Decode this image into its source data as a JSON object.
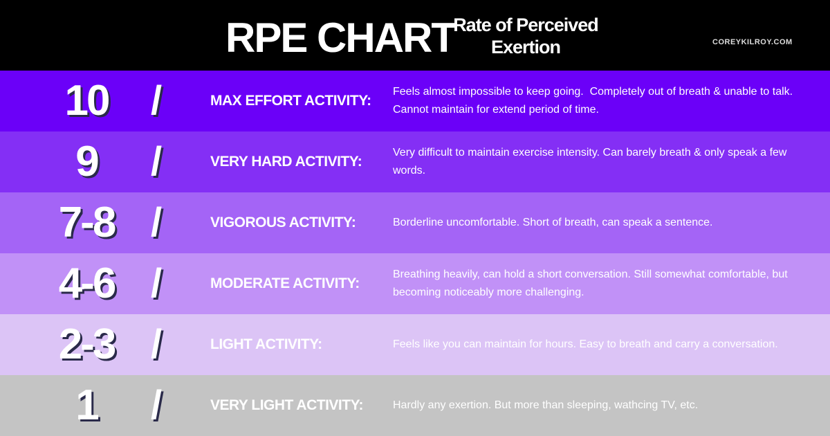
{
  "header": {
    "title": "RPE CHART",
    "subtitle": "Rate of Perceived Exertion",
    "site": "COREYKILROY.COM"
  },
  "separator": "/",
  "rows": [
    {
      "level": "10",
      "label": "MAX EFFORT ACTIVITY:",
      "description": "Feels almost impossible to keep going.  Completely out of breath & unable to talk. Cannot maintain for extend period of time.",
      "color": "#6b00f8"
    },
    {
      "level": "9",
      "label": "VERY HARD ACTIVITY:",
      "description": "Very difficult to maintain exercise intensity. Can barely breath & only speak a few words.",
      "color": "#842ff5"
    },
    {
      "level": "7-8",
      "label": "VIGOROUS ACTIVITY:",
      "description": "Borderline uncomfortable. Short of breath, can speak a sentence.",
      "color": "#a464f6"
    },
    {
      "level": "4-6",
      "label": "MODERATE ACTIVITY:",
      "description": "Breathing heavily, can hold a short conversation. Still somewhat comfortable, but becoming noticeably more challenging.",
      "color": "#c191f7"
    },
    {
      "level": "2-3",
      "label": "LIGHT ACTIVITY:",
      "description": "Feels like you can maintain for hours. Easy to breath and carry a conversation.",
      "color": "#dcc4f6"
    },
    {
      "level": "1",
      "label": "VERY LIGHT ACTIVITY:",
      "description": "Hardly any exertion. But more than sleeping, wathcing TV, etc.",
      "color": "#c4c4c4"
    }
  ]
}
